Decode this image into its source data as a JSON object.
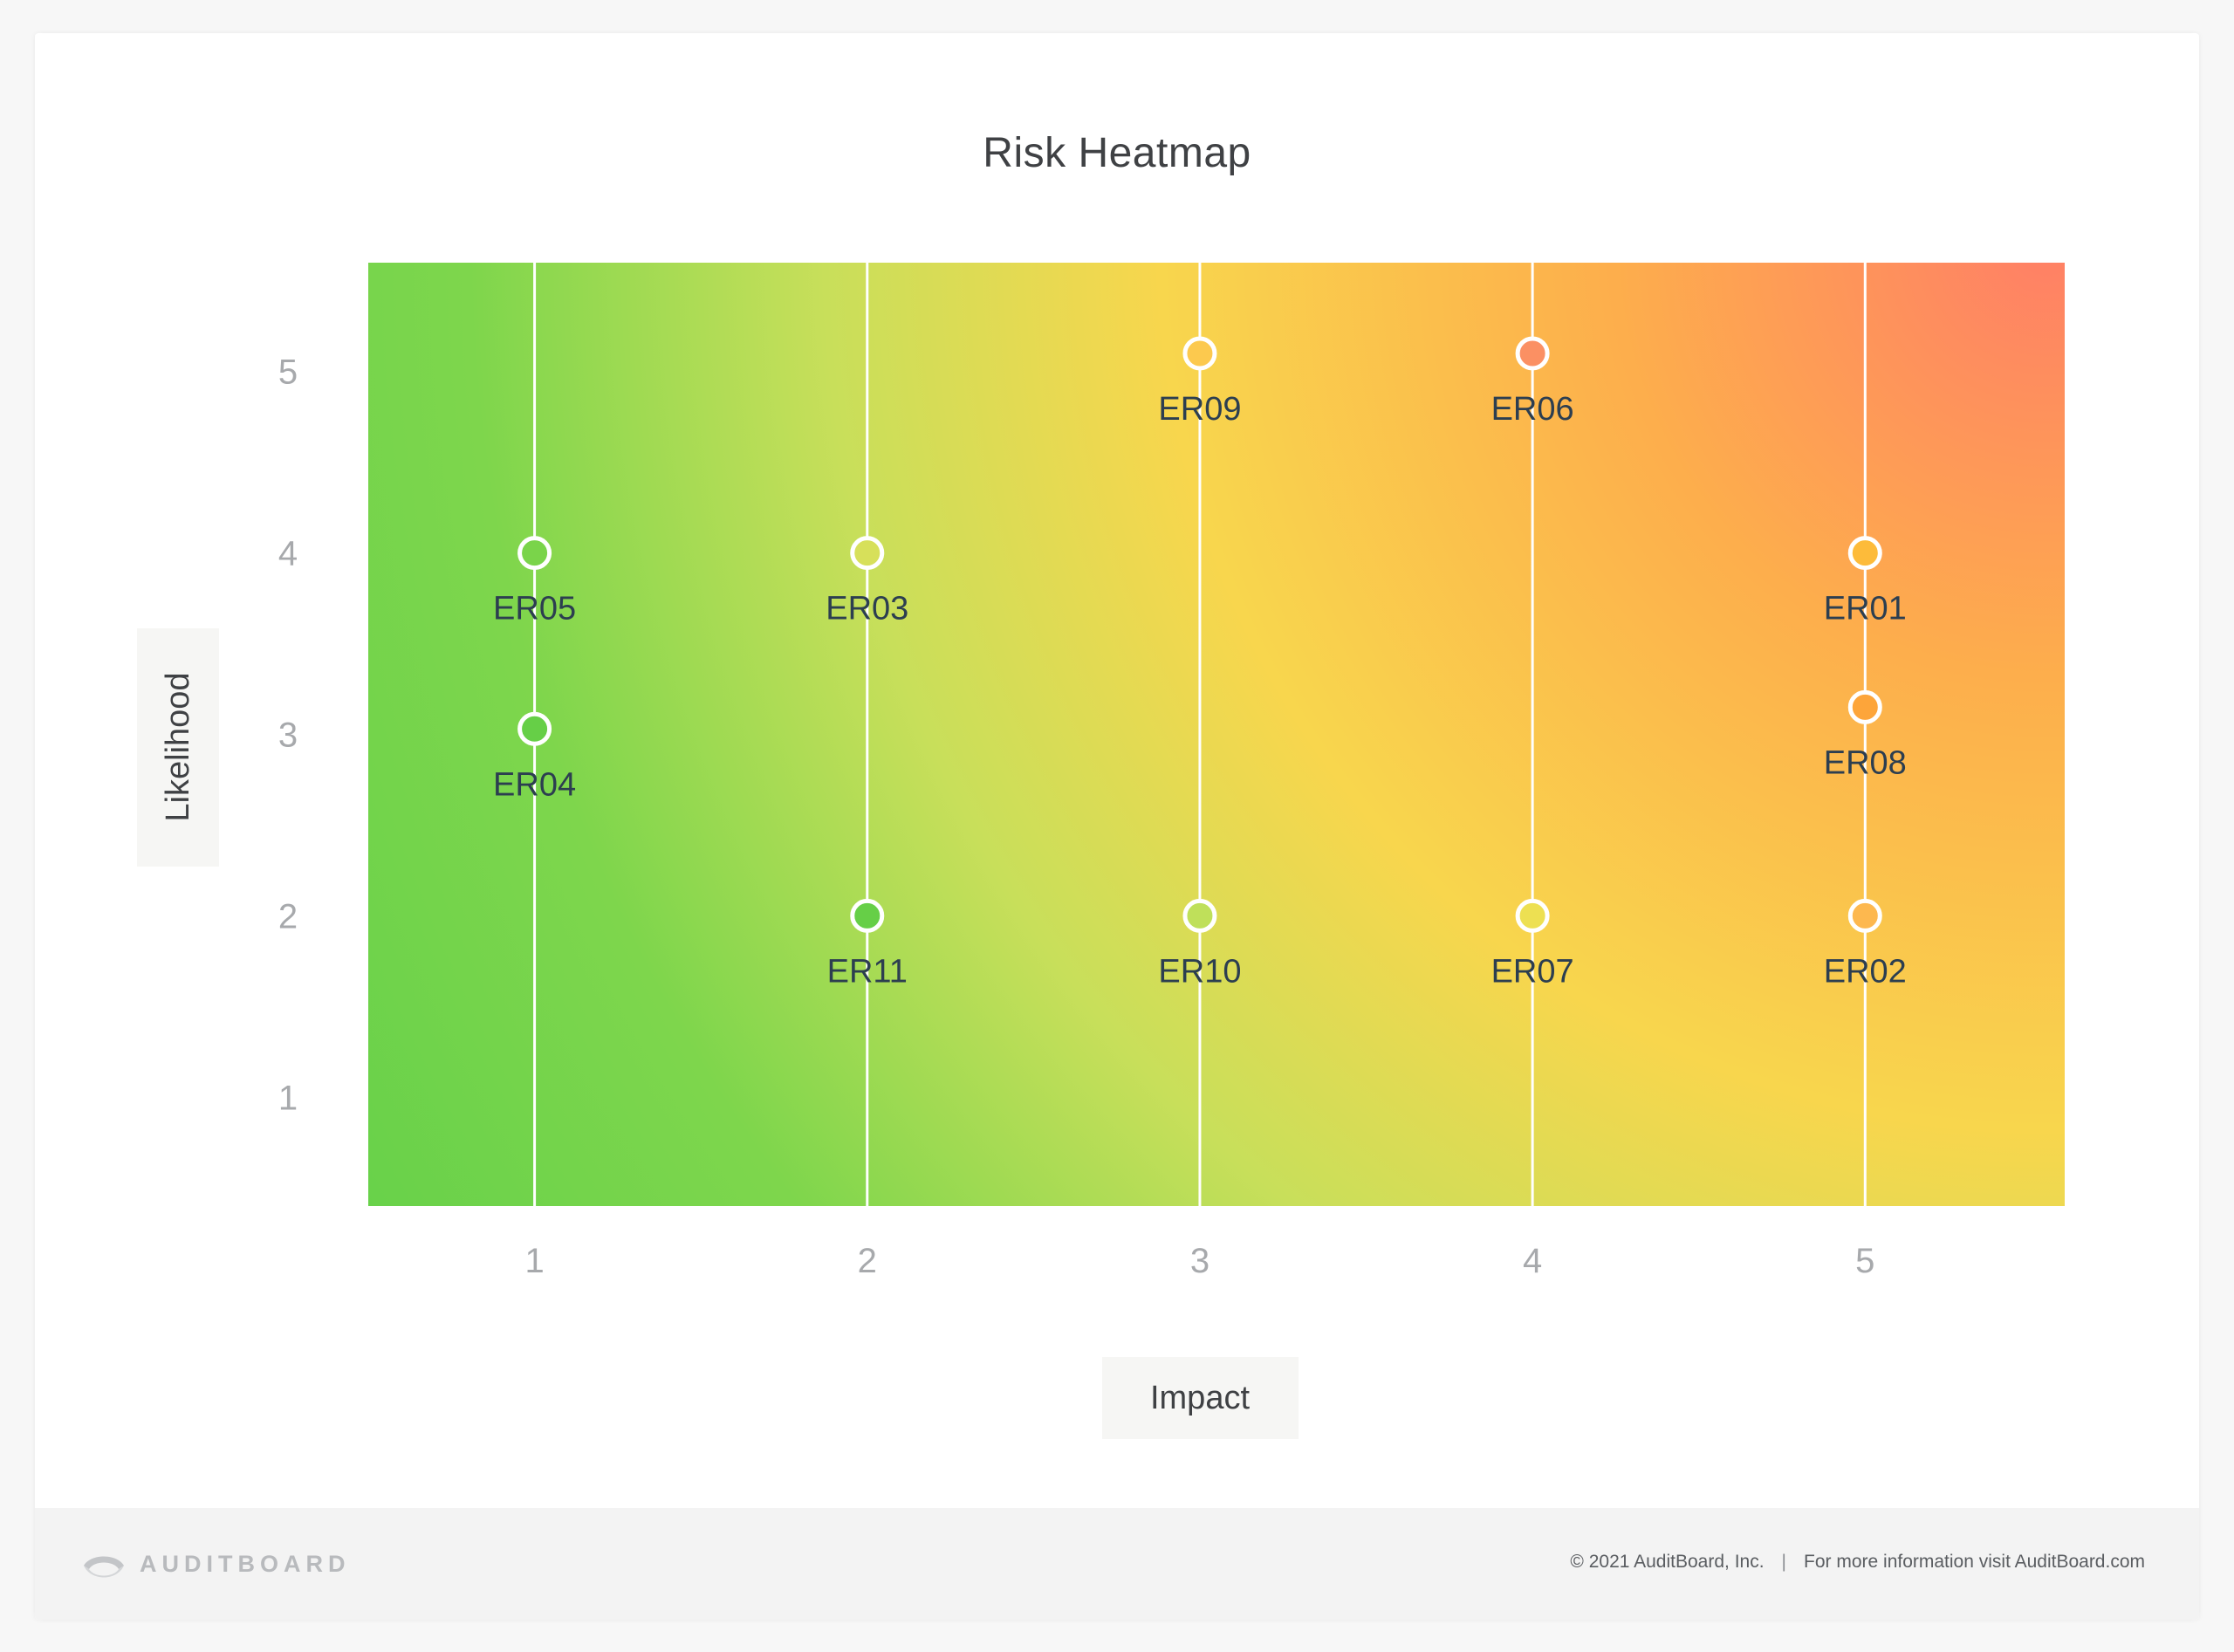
{
  "chart_data": {
    "type": "scatter",
    "title": "Risk Heatmap",
    "xlabel": "Impact",
    "ylabel": "Likelihood",
    "xlim": [
      0.5,
      5.6
    ],
    "ylim": [
      0.4,
      5.6
    ],
    "x_ticks": [
      "1",
      "2",
      "3",
      "4",
      "5"
    ],
    "y_ticks": [
      "1",
      "2",
      "3",
      "4",
      "5"
    ],
    "grid": "vertical lines at impact ticks",
    "points": [
      {
        "label": "ER01",
        "x": 5,
        "y": 4,
        "color": "#fdbb3a"
      },
      {
        "label": "ER02",
        "x": 5,
        "y": 2,
        "color": "#fdb84f"
      },
      {
        "label": "ER03",
        "x": 2,
        "y": 4,
        "color": "#d7e05a"
      },
      {
        "label": "ER04",
        "x": 1,
        "y": 3.03,
        "color": "#66cf47"
      },
      {
        "label": "ER05",
        "x": 1,
        "y": 4,
        "color": "#7ad44a"
      },
      {
        "label": "ER06",
        "x": 4,
        "y": 5.1,
        "color": "#fb9063"
      },
      {
        "label": "ER07",
        "x": 4,
        "y": 2,
        "color": "#ede052"
      },
      {
        "label": "ER08",
        "x": 5,
        "y": 3.15,
        "color": "#fda53a"
      },
      {
        "label": "ER09",
        "x": 3,
        "y": 5.1,
        "color": "#fcc94e"
      },
      {
        "label": "ER10",
        "x": 3,
        "y": 2,
        "color": "#bfe05a"
      },
      {
        "label": "ER11",
        "x": 2,
        "y": 2,
        "color": "#66cf47"
      }
    ]
  },
  "footer": {
    "brand": "AUDITBOARD",
    "copyright": "© 2021  AuditBoard, Inc.",
    "separator": "|",
    "info": "For more information visit AuditBoard.com"
  },
  "colors": {
    "green": "#66d14a",
    "yellow": "#f8d64d",
    "orange": "#fdb04a",
    "red": "#ff7f66"
  }
}
